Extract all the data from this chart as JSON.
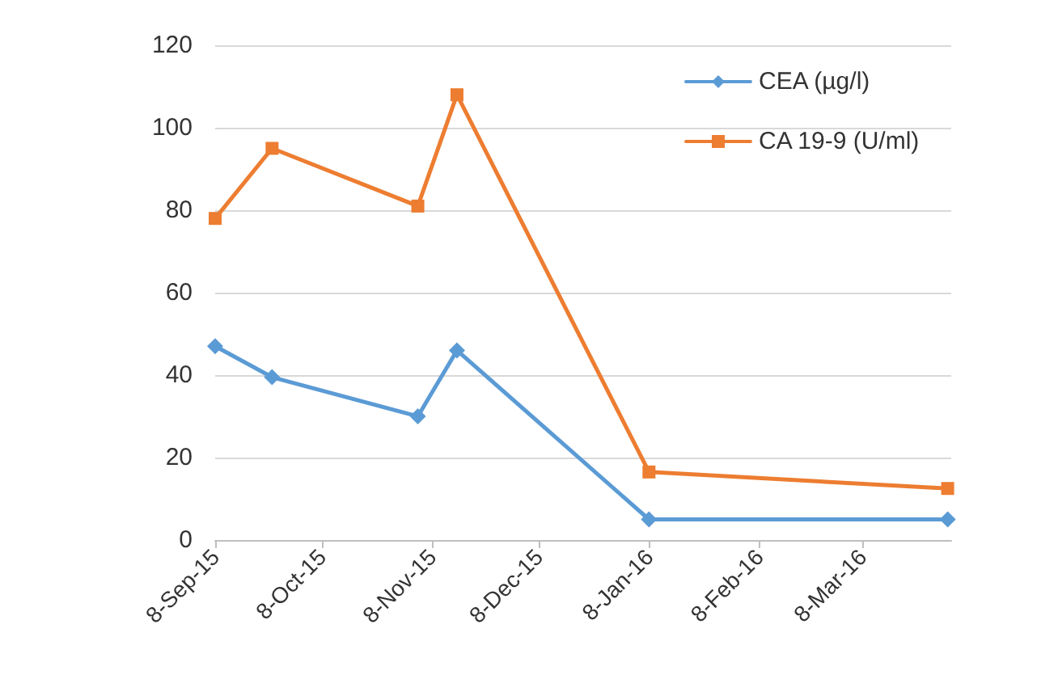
{
  "chart_data": {
    "type": "line",
    "x": [
      "2015-09-08",
      "2015-09-24",
      "2015-11-04",
      "2015-11-15",
      "2016-01-08",
      "2016-04-01"
    ],
    "series": [
      {
        "name": "CEA (µg/l)",
        "color": "#5b9bd5",
        "marker": "diamond",
        "values": [
          47,
          39.5,
          30,
          46,
          5,
          5
        ]
      },
      {
        "name": "CA 19-9 (U/ml)",
        "color": "#ed7d31",
        "marker": "square",
        "values": [
          78,
          95,
          81,
          108,
          16.5,
          12.5
        ]
      }
    ],
    "xlim": [
      "2015-09-08",
      "2016-04-02"
    ],
    "xticks": [
      {
        "value": "2015-09-08",
        "label": "8-Sep-15"
      },
      {
        "value": "2015-10-08",
        "label": "8-Oct-15"
      },
      {
        "value": "2015-11-08",
        "label": "8-Nov-15"
      },
      {
        "value": "2015-12-08",
        "label": "8-Dec-15"
      },
      {
        "value": "2016-01-08",
        "label": "8-Jan-16"
      },
      {
        "value": "2016-02-08",
        "label": "8-Feb-16"
      },
      {
        "value": "2016-03-08",
        "label": "8-Mar-16"
      }
    ],
    "ylim": [
      0,
      120
    ],
    "yticks": [
      0,
      20,
      40,
      60,
      80,
      100,
      120
    ],
    "grid": "y",
    "legend": "top right",
    "line_style": "solid"
  }
}
